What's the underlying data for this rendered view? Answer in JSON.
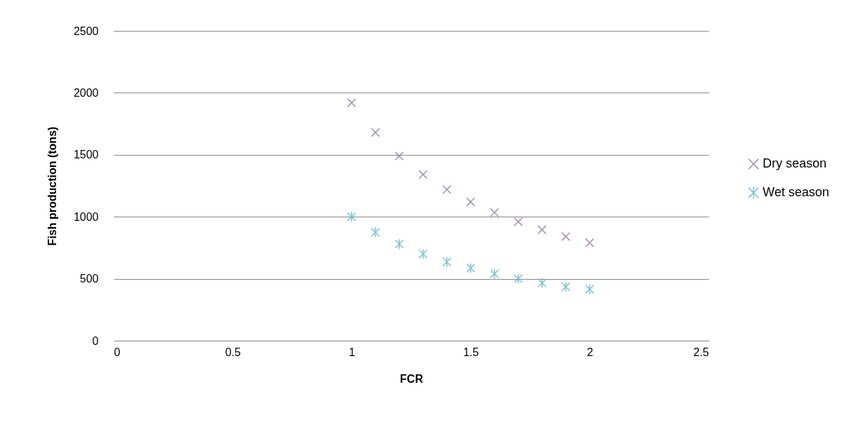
{
  "chart_data": {
    "type": "scatter",
    "xlabel": "FCR",
    "ylabel": "Fish production (tons)",
    "x": [
      1,
      1.1,
      1.2,
      1.3,
      1.4,
      1.5,
      1.6,
      1.7,
      1.8,
      1.9,
      2
    ],
    "series": [
      {
        "name": "Dry season",
        "color": "#8064a2",
        "marker": "cross",
        "values": [
          1920,
          1680,
          1490,
          1340,
          1220,
          1120,
          1035,
          960,
          895,
          840,
          790
        ]
      },
      {
        "name": "Wet season",
        "color": "#4bacc6",
        "values": [
          1000,
          875,
          780,
          700,
          635,
          585,
          540,
          500,
          465,
          435,
          415
        ]
      }
    ],
    "xlim": [
      0,
      2.5
    ],
    "xticks": [
      0,
      0.5,
      1,
      1.5,
      2,
      2.5
    ],
    "ylim": [
      0,
      2500
    ],
    "yticks": [
      0,
      500,
      1000,
      1500,
      2000,
      2500
    ],
    "grid": "y",
    "legend": "right"
  }
}
